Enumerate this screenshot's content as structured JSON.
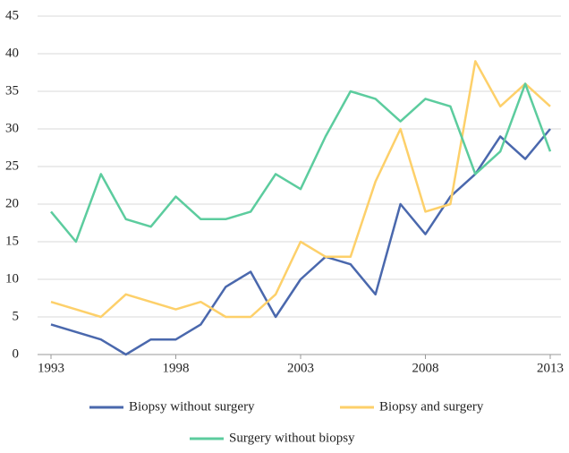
{
  "chart_data": {
    "type": "line",
    "x": [
      1993,
      1994,
      1995,
      1996,
      1997,
      1998,
      1999,
      2000,
      2001,
      2002,
      2003,
      2004,
      2005,
      2006,
      2007,
      2008,
      2009,
      2010,
      2011,
      2012,
      2013
    ],
    "series": [
      {
        "name": "Biopsy without surgery",
        "color": "#4a68ad",
        "values": [
          4,
          3,
          2,
          0,
          2,
          2,
          4,
          9,
          11,
          5,
          10,
          13,
          12,
          8,
          20,
          16,
          21,
          24,
          29,
          26,
          30
        ]
      },
      {
        "name": "Biopsy and surgery",
        "color": "#fdd06a",
        "values": [
          7,
          6,
          5,
          8,
          7,
          6,
          7,
          5,
          5,
          8,
          15,
          13,
          13,
          23,
          30,
          19,
          20,
          39,
          33,
          36,
          33
        ]
      },
      {
        "name": "Surgery without biopsy",
        "color": "#5ccc9e",
        "values": [
          19,
          15,
          24,
          18,
          17,
          21,
          18,
          18,
          19,
          24,
          22,
          29,
          35,
          34,
          31,
          34,
          33,
          24,
          27,
          36,
          27
        ]
      }
    ],
    "xlim": [
      1993,
      2013
    ],
    "xticks": [
      1993,
      1998,
      2003,
      2008,
      2013
    ],
    "ylim": [
      0,
      45
    ],
    "yticks": [
      0,
      5,
      10,
      15,
      20,
      25,
      30,
      35,
      40,
      45
    ],
    "grid": true,
    "legend": "bottom"
  }
}
